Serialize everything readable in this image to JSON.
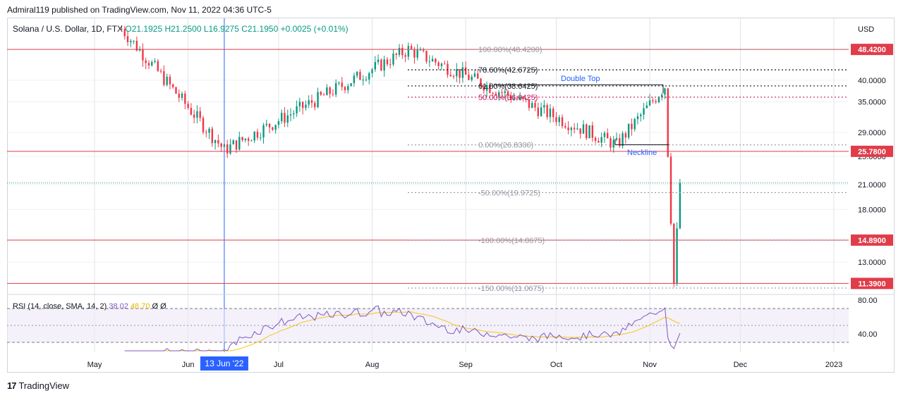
{
  "header": {
    "published": "Admiral119 published on TradingView.com, Nov 11, 2022 04:36 UTC-5"
  },
  "legend": {
    "symbol": "Solana / U.S. Dollar, 1D, FTX",
    "ohlc": "O21.1925  H21.2500  L16.9275  C21.1950  +0.0025 (+0.01%)"
  },
  "rsi_legend": {
    "label": "RSI (14, close, SMA, 14, 2)",
    "rsi": "38.02",
    "sma": "48.70",
    "extra": "Ø  Ø"
  },
  "currency": "USD",
  "price_ticks": [
    "40.0000",
    "35.0000",
    "29.0000",
    "25.0000",
    "21.0000",
    "18.0000",
    "13.0000"
  ],
  "highlight_levels": [
    {
      "label": "48.4200",
      "value": 48.42
    },
    {
      "label": "25.7800",
      "value": 25.78
    },
    {
      "label": "14.8900",
      "value": 14.89
    },
    {
      "label": "11.3900",
      "value": 11.39
    }
  ],
  "fib_labels": [
    {
      "text": "100.00%(48.4200)",
      "value": 48.42
    },
    {
      "text": "78.60%(42.6725)",
      "value": 42.6725
    },
    {
      "text": "61.80%(38.6425)",
      "value": 38.6425
    },
    {
      "text": "50.00%(36.0425)",
      "value": 36.0425
    },
    {
      "text": "0.00%(26.8300)",
      "value": 26.83
    },
    {
      "text": "-50.00%(19.9725)",
      "value": 19.9725
    },
    {
      "text": "-100.00%(14.8675)",
      "value": 14.8675
    },
    {
      "text": "-150.00%(11.0675)",
      "value": 11.0675
    }
  ],
  "annotations": {
    "double_top": "Double Top",
    "neckline": "Neckline"
  },
  "rsi_ticks": [
    "80.00",
    "40.00"
  ],
  "time_axis": [
    "May",
    "Jun",
    "Jul",
    "Aug",
    "Sep",
    "Oct",
    "Nov",
    "Dec",
    "2023"
  ],
  "cursor_date": "13 Jun '22",
  "footer": {
    "brand": "TradingView"
  },
  "colors": {
    "up": "#089981",
    "down": "#f23645",
    "level": "#e03c4a",
    "cursor": "#2962ff"
  },
  "chart_data": {
    "type": "candlestick",
    "title": "Solana / U.S. Dollar, 1D, FTX",
    "price_scale": "log",
    "key_points": [
      {
        "date": "2022-05-10",
        "price": 55.0
      },
      {
        "date": "2022-06-13",
        "price": 26.0
      },
      {
        "date": "2022-08-13",
        "price": 48.4
      },
      {
        "date": "2022-10-21",
        "price": 26.83
      },
      {
        "date": "2022-11-06",
        "price": 38.6
      },
      {
        "date": "2022-11-09",
        "price": 11.39
      },
      {
        "date": "2022-11-11",
        "price": 21.195
      }
    ],
    "last": {
      "open": 21.1925,
      "high": 21.25,
      "low": 16.9275,
      "close": 21.195
    }
  }
}
